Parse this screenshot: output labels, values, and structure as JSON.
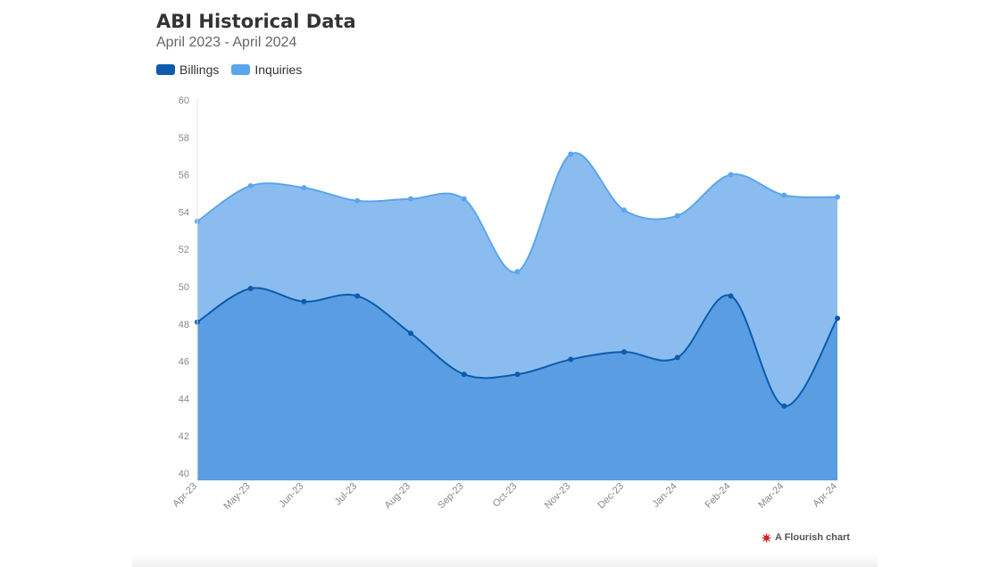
{
  "chart_data": {
    "type": "area",
    "title": "ABI Historical Data",
    "subtitle": "April 2023 - April 2024",
    "categories": [
      "Apr-23",
      "May-23",
      "Jun-23",
      "Jul-23",
      "Aug-23",
      "Sep-23",
      "Oct-23",
      "Nov-23",
      "Dec-23",
      "Jan-24",
      "Feb-24",
      "Mar-24",
      "Apr-24"
    ],
    "series": [
      {
        "name": "Inquiries",
        "color": "#8bbcf0",
        "line_color": "#5aa6ec",
        "values": [
          53.5,
          55.4,
          55.3,
          54.6,
          54.7,
          54.7,
          50.8,
          57.1,
          54.1,
          53.8,
          56.0,
          54.9,
          54.8
        ]
      },
      {
        "name": "Billings",
        "color": "#5b9de2",
        "line_color": "#0b5cad",
        "values": [
          48.1,
          49.9,
          49.2,
          49.5,
          47.5,
          45.3,
          45.3,
          46.1,
          46.5,
          46.2,
          49.5,
          43.6,
          48.3
        ]
      }
    ],
    "legend": [
      {
        "label": "Billings",
        "color": "#0b5cad"
      },
      {
        "label": "Inquiries",
        "color": "#5aa6ec"
      }
    ],
    "ylim": [
      40,
      60
    ],
    "yticks": [
      40,
      42,
      44,
      46,
      48,
      50,
      52,
      54,
      56,
      58,
      60
    ],
    "xlabel": "",
    "ylabel": "",
    "grid": false,
    "legend_position": "top-left"
  },
  "credit": {
    "label": "A Flourish chart",
    "icon": "flourish-icon",
    "color": "#d9231f"
  }
}
